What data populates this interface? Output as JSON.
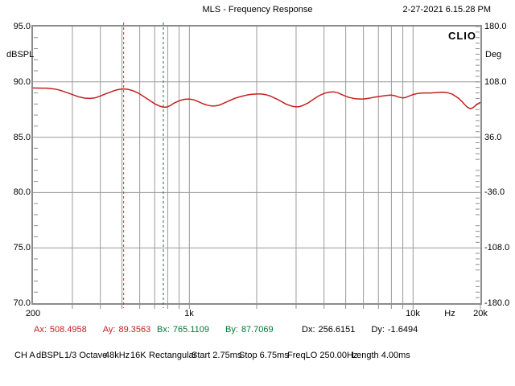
{
  "header": {
    "title": "MLS - Frequency Response",
    "datetime": "2-27-2021 6.15.28 PM"
  },
  "branding": {
    "logo": "CLIO"
  },
  "axes": {
    "left": {
      "unit": "dBSPL",
      "ticks": [
        "95.0",
        "90.0",
        "85.0",
        "80.0",
        "75.0",
        "70.0"
      ]
    },
    "right": {
      "unit": "Deg",
      "ticks": [
        "180.0",
        "108.0",
        "36.0",
        "-36.0",
        "-108.0",
        "-180.0"
      ]
    },
    "bottom": {
      "unit": "Hz",
      "labels": [
        "200",
        "1k",
        "10k",
        "Hz",
        "20k"
      ]
    }
  },
  "cursors": {
    "a": {
      "x_label": "Ax:",
      "x_value": "508.4958",
      "y_label": "Ay:",
      "y_value": "89.3563",
      "color": "#c22222"
    },
    "b": {
      "x_label": "Bx:",
      "x_value": "765.1109",
      "y_label": "By:",
      "y_value": "87.7069",
      "color": "#007a33"
    },
    "d": {
      "x_label": "Dx:",
      "x_value": "256.6151",
      "y_label": "Dy:",
      "y_value": "-1.6494",
      "color": "#000000"
    }
  },
  "status_bar": {
    "items": [
      "CH A",
      "dBSPL",
      "1/3 Octave",
      "48kHz",
      "16K",
      "Rectangular",
      "Start 2.75ms",
      "Stop 6.75ms",
      "FreqLO 250.00Hz",
      "Length 4.00ms"
    ]
  },
  "chart_data": {
    "type": "line",
    "title": "MLS - Frequency Response",
    "xlabel": "Hz",
    "ylabel": "dBSPL",
    "y2label": "Deg",
    "xscale": "log",
    "xlim": [
      200,
      20000
    ],
    "ylim": [
      70,
      95
    ],
    "y2lim": [
      -180,
      180
    ],
    "grid": true,
    "x_gridlines": [
      300,
      400,
      500,
      600,
      700,
      800,
      900,
      1000,
      2000,
      3000,
      4000,
      5000,
      6000,
      7000,
      8000,
      9000,
      10000
    ],
    "y_gridlines": [
      90,
      85,
      80,
      75
    ],
    "colors": {
      "grid": "#9a9a9a",
      "border": "#8c8c8c",
      "curve": "#c62020",
      "marker_a": "#c83232",
      "marker_b": "#1a6e33"
    },
    "markers": [
      {
        "name": "A",
        "x": 508.4958,
        "y": 89.3563,
        "style": "dashed",
        "color": "#c83232"
      },
      {
        "name": "B",
        "x": 765.1109,
        "y": 87.7069,
        "style": "dashed",
        "color": "#1a6e33"
      }
    ],
    "series": [
      {
        "name": "CH A dBSPL",
        "color": "#c62020",
        "points": [
          [
            200,
            89.45
          ],
          [
            210,
            89.44
          ],
          [
            220,
            89.43
          ],
          [
            230,
            89.43
          ],
          [
            240,
            89.4
          ],
          [
            250,
            89.35
          ],
          [
            260,
            89.28
          ],
          [
            270,
            89.18
          ],
          [
            280,
            89.07
          ],
          [
            300,
            88.85
          ],
          [
            320,
            88.65
          ],
          [
            340,
            88.53
          ],
          [
            360,
            88.5
          ],
          [
            380,
            88.56
          ],
          [
            400,
            88.72
          ],
          [
            420,
            88.9
          ],
          [
            440,
            89.05
          ],
          [
            460,
            89.2
          ],
          [
            480,
            89.3
          ],
          [
            500,
            89.35
          ],
          [
            510,
            89.36
          ],
          [
            530,
            89.33
          ],
          [
            560,
            89.2
          ],
          [
            590,
            89.0
          ],
          [
            620,
            88.72
          ],
          [
            650,
            88.45
          ],
          [
            680,
            88.18
          ],
          [
            710,
            87.95
          ],
          [
            740,
            87.8
          ],
          [
            765,
            87.71
          ],
          [
            790,
            87.72
          ],
          [
            820,
            87.85
          ],
          [
            850,
            88.05
          ],
          [
            880,
            88.2
          ],
          [
            910,
            88.32
          ],
          [
            950,
            88.42
          ],
          [
            1000,
            88.45
          ],
          [
            1050,
            88.37
          ],
          [
            1100,
            88.2
          ],
          [
            1150,
            88.02
          ],
          [
            1200,
            87.9
          ],
          [
            1250,
            87.83
          ],
          [
            1300,
            87.82
          ],
          [
            1350,
            87.88
          ],
          [
            1400,
            88.0
          ],
          [
            1500,
            88.28
          ],
          [
            1600,
            88.52
          ],
          [
            1700,
            88.68
          ],
          [
            1800,
            88.8
          ],
          [
            1900,
            88.87
          ],
          [
            2000,
            88.9
          ],
          [
            2100,
            88.9
          ],
          [
            2200,
            88.84
          ],
          [
            2300,
            88.72
          ],
          [
            2400,
            88.55
          ],
          [
            2500,
            88.38
          ],
          [
            2600,
            88.18
          ],
          [
            2700,
            88.0
          ],
          [
            2800,
            87.88
          ],
          [
            2900,
            87.78
          ],
          [
            3000,
            87.74
          ],
          [
            3100,
            87.76
          ],
          [
            3200,
            87.85
          ],
          [
            3400,
            88.1
          ],
          [
            3600,
            88.45
          ],
          [
            3800,
            88.75
          ],
          [
            4000,
            88.95
          ],
          [
            4200,
            89.07
          ],
          [
            4400,
            89.1
          ],
          [
            4600,
            89.02
          ],
          [
            4800,
            88.85
          ],
          [
            5000,
            88.7
          ],
          [
            5200,
            88.58
          ],
          [
            5500,
            88.48
          ],
          [
            5800,
            88.45
          ],
          [
            6000,
            88.45
          ],
          [
            6300,
            88.5
          ],
          [
            6600,
            88.58
          ],
          [
            7000,
            88.67
          ],
          [
            7400,
            88.74
          ],
          [
            7800,
            88.79
          ],
          [
            8000,
            88.8
          ],
          [
            8300,
            88.74
          ],
          [
            8600,
            88.63
          ],
          [
            9000,
            88.55
          ],
          [
            9300,
            88.6
          ],
          [
            9600,
            88.72
          ],
          [
            10000,
            88.85
          ],
          [
            10500,
            88.95
          ],
          [
            11000,
            89.0
          ],
          [
            11500,
            89.0
          ],
          [
            12000,
            89.0
          ],
          [
            12500,
            89.02
          ],
          [
            13000,
            89.05
          ],
          [
            13500,
            89.07
          ],
          [
            14000,
            89.05
          ],
          [
            14500,
            88.98
          ],
          [
            15000,
            88.88
          ],
          [
            15500,
            88.7
          ],
          [
            16000,
            88.5
          ],
          [
            16500,
            88.25
          ],
          [
            17000,
            87.95
          ],
          [
            17500,
            87.7
          ],
          [
            18000,
            87.58
          ],
          [
            18500,
            87.65
          ],
          [
            19000,
            87.85
          ],
          [
            19500,
            88.02
          ],
          [
            20000,
            88.15
          ]
        ]
      }
    ]
  }
}
